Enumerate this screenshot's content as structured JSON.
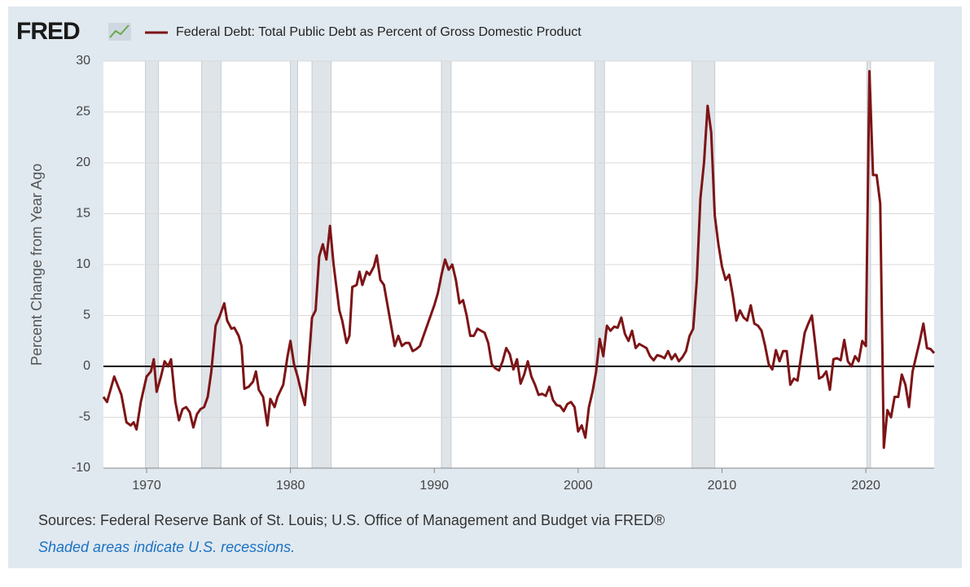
{
  "chart_data": {
    "type": "line",
    "logo": "FRED",
    "y_label": "Percent Change from Year Ago",
    "sources": "Sources: Federal Reserve Bank of St. Louis; U.S. Office of Management and Budget via FRED®",
    "recession_note": "Shaded areas indicate U.S. recessions.",
    "xlim": [
      1967,
      2024.75
    ],
    "xticks": [
      1970,
      1980,
      1990,
      2000,
      2010,
      2020
    ],
    "ylim": [
      -10,
      30
    ],
    "yticks": [
      -10,
      -5,
      0,
      5,
      10,
      15,
      20,
      25,
      30
    ],
    "grid": true,
    "recession_color": "#dfe4e8",
    "recessions": [
      [
        1969.92,
        1970.83
      ],
      [
        1973.83,
        1975.17
      ],
      [
        1980.0,
        1980.5
      ],
      [
        1981.5,
        1982.83
      ],
      [
        1990.5,
        1991.17
      ],
      [
        2001.17,
        2001.83
      ],
      [
        2007.92,
        2009.5
      ],
      [
        2020.08,
        2020.33
      ]
    ],
    "x": [
      1967.0,
      1967.25,
      1967.75,
      1968.25,
      1968.6,
      1968.9,
      1969.1,
      1969.3,
      1969.6,
      1970.0,
      1970.3,
      1970.5,
      1970.7,
      1971.0,
      1971.25,
      1971.5,
      1971.7,
      1972.0,
      1972.25,
      1972.5,
      1972.75,
      1973.0,
      1973.25,
      1973.5,
      1973.75,
      1974.0,
      1974.25,
      1974.5,
      1974.8,
      1975.1,
      1975.4,
      1975.6,
      1975.9,
      1976.1,
      1976.4,
      1976.6,
      1976.8,
      1977.1,
      1977.4,
      1977.6,
      1977.8,
      1978.1,
      1978.4,
      1978.6,
      1978.9,
      1979.1,
      1979.5,
      1979.8,
      1980.0,
      1980.25,
      1980.5,
      1980.75,
      1981.0,
      1981.25,
      1981.5,
      1981.75,
      1982.0,
      1982.25,
      1982.5,
      1982.75,
      1983.0,
      1983.4,
      1983.6,
      1983.9,
      1984.1,
      1984.3,
      1984.6,
      1984.8,
      1985.0,
      1985.3,
      1985.5,
      1985.8,
      1986.0,
      1986.25,
      1986.5,
      1986.75,
      1987.0,
      1987.25,
      1987.5,
      1987.75,
      1988.0,
      1988.25,
      1988.5,
      1988.75,
      1989.0,
      1989.5,
      1990.0,
      1990.25,
      1990.5,
      1990.75,
      1991.0,
      1991.25,
      1991.5,
      1991.75,
      1992.0,
      1992.25,
      1992.5,
      1992.75,
      1993.0,
      1993.25,
      1993.5,
      1993.75,
      1994.0,
      1994.25,
      1994.5,
      1994.75,
      1995.0,
      1995.25,
      1995.5,
      1995.75,
      1996.0,
      1996.25,
      1996.5,
      1996.75,
      1997.0,
      1997.25,
      1997.5,
      1997.75,
      1998.0,
      1998.25,
      1998.5,
      1998.75,
      1999.0,
      1999.25,
      1999.5,
      1999.75,
      2000.0,
      2000.25,
      2000.5,
      2000.75,
      2001.0,
      2001.25,
      2001.5,
      2001.75,
      2002.0,
      2002.25,
      2002.5,
      2002.75,
      2003.0,
      2003.25,
      2003.5,
      2003.75,
      2004.0,
      2004.25,
      2004.5,
      2004.75,
      2005.0,
      2005.25,
      2005.5,
      2005.75,
      2006.0,
      2006.25,
      2006.5,
      2006.75,
      2007.0,
      2007.25,
      2007.5,
      2007.75,
      2008.0,
      2008.25,
      2008.5,
      2008.75,
      2009.0,
      2009.25,
      2009.5,
      2009.75,
      2010.0,
      2010.25,
      2010.5,
      2010.75,
      2011.0,
      2011.25,
      2011.5,
      2011.75,
      2012.0,
      2012.25,
      2012.5,
      2012.75,
      2013.0,
      2013.25,
      2013.5,
      2013.75,
      2014.0,
      2014.25,
      2014.5,
      2014.75,
      2015.0,
      2015.25,
      2015.5,
      2015.75,
      2016.0,
      2016.25,
      2016.5,
      2016.75,
      2017.0,
      2017.25,
      2017.5,
      2017.75,
      2018.0,
      2018.25,
      2018.5,
      2018.75,
      2019.0,
      2019.25,
      2019.5,
      2019.75,
      2020.0,
      2020.25,
      2020.5,
      2020.75,
      2021.0,
      2021.25,
      2021.5,
      2021.75,
      2022.0,
      2022.25,
      2022.5,
      2022.75,
      2023.0,
      2023.25,
      2023.5,
      2023.75,
      2024.0,
      2024.25,
      2024.5,
      2024.75
    ],
    "series": [
      {
        "name": "Federal Debt: Total Public Debt as Percent of Gross Domestic Product",
        "color": "#7d1416",
        "values": [
          -3,
          -3.5,
          -1,
          -2.8,
          -5.5,
          -5.8,
          -5.5,
          -6.2,
          -3.5,
          -1,
          -0.5,
          0.7,
          -2.5,
          -1,
          0.5,
          0,
          0.7,
          -3.5,
          -5.3,
          -4.2,
          -4,
          -4.5,
          -6,
          -4.7,
          -4.2,
          -4,
          -3,
          -0.5,
          4,
          5,
          6.2,
          4.5,
          3.7,
          3.8,
          3,
          2,
          -2.2,
          -2,
          -1.5,
          -0.5,
          -2.3,
          -3,
          -5.8,
          -3.2,
          -4,
          -3,
          -1.8,
          1,
          2.5,
          0.2,
          -1,
          -2.5,
          -3.8,
          0,
          4.8,
          5.5,
          10.8,
          12,
          10.5,
          13.8,
          10,
          5.5,
          4.5,
          2.3,
          3,
          7.8,
          8,
          9.3,
          8,
          9.3,
          9,
          9.8,
          10.9,
          8.5,
          8,
          6,
          4,
          2,
          3,
          2,
          2.3,
          2.3,
          1.5,
          1.7,
          2,
          4,
          6,
          7.2,
          9,
          10.5,
          9.5,
          10,
          8.5,
          6.2,
          6.5,
          5,
          3,
          3,
          3.7,
          3.5,
          3.3,
          2.3,
          0.2,
          -0.2,
          -0.4,
          0.5,
          1.8,
          1.2,
          -0.3,
          0.7,
          -1.7,
          -0.8,
          0.5,
          -1,
          -1.8,
          -2.8,
          -2.7,
          -2.9,
          -2,
          -3.3,
          -3.8,
          -3.9,
          -4.4,
          -3.7,
          -3.5,
          -4,
          -6.4,
          -5.8,
          -7,
          -4,
          -2.5,
          -0.5,
          2.7,
          1,
          4,
          3.5,
          3.9,
          3.8,
          4.8,
          3.2,
          2.5,
          3.5,
          1.8,
          2.2,
          2,
          1.8,
          1,
          0.6,
          1.1,
          1,
          0.8,
          1.5,
          0.7,
          1.2,
          0.5,
          0.9,
          1.5,
          3,
          3.7,
          8.5,
          16.5,
          20,
          25.6,
          23,
          14.8,
          12,
          9.8,
          8.5,
          9,
          7,
          4.5,
          5.5,
          4.8,
          4.5,
          6,
          4.2,
          4,
          3.5,
          2,
          0.2,
          -0.3,
          1.6,
          0.5,
          1.5,
          1.5,
          -1.8,
          -1.2,
          -1.4,
          1,
          3.3,
          4.2,
          5,
          2,
          -1.2,
          -1,
          -0.5,
          -2.3,
          0.7,
          0.8,
          0.6,
          2.6,
          0.5,
          0,
          1,
          0.5,
          2.5,
          2,
          29,
          18.8,
          18.8,
          16,
          -8,
          -4.3,
          -5,
          -3,
          -3,
          -0.8,
          -1.8,
          -4,
          -0.5,
          1,
          2.5,
          4.2,
          1.8,
          1.7,
          1.3
        ]
      }
    ]
  }
}
